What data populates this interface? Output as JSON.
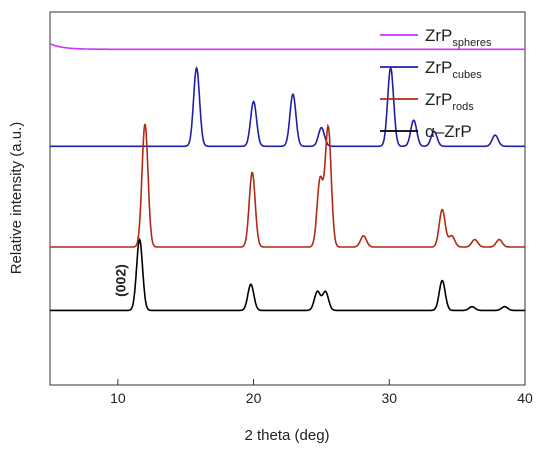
{
  "chart_data": {
    "type": "line",
    "title": "",
    "xlabel": "2 theta (deg)",
    "ylabel": "Relative intensity (a.u.)",
    "xlim": [
      5,
      40
    ],
    "x_ticks": [
      10,
      20,
      30,
      40
    ],
    "grid": false,
    "legend_position": "top-right",
    "annotation": {
      "text": "(002)",
      "x": 11.6
    },
    "series": [
      {
        "name": "ZrP_spheres",
        "label_main": "ZrP",
        "label_sub": "spheres",
        "color": "#cc33ff",
        "baseline": 0.9,
        "start_bump": 0.015,
        "peaks": []
      },
      {
        "name": "ZrP_cubes",
        "label_main": "ZrP",
        "label_sub": "cubes",
        "color": "#1f1fa8",
        "baseline": 0.64,
        "start_bump": 0,
        "peaks": [
          {
            "x": 15.8,
            "h": 0.21
          },
          {
            "x": 20.0,
            "h": 0.12
          },
          {
            "x": 22.9,
            "h": 0.14
          },
          {
            "x": 25.0,
            "h": 0.05
          },
          {
            "x": 30.1,
            "h": 0.21
          },
          {
            "x": 31.8,
            "h": 0.07
          },
          {
            "x": 33.3,
            "h": 0.04
          },
          {
            "x": 37.8,
            "h": 0.03
          }
        ]
      },
      {
        "name": "ZrP_rods",
        "label_main": "ZrP",
        "label_sub": "rods",
        "color": "#b22a16",
        "baseline": 0.37,
        "start_bump": 0,
        "peaks": [
          {
            "x": 12.0,
            "h": 0.33
          },
          {
            "x": 19.9,
            "h": 0.2
          },
          {
            "x": 24.9,
            "h": 0.18
          },
          {
            "x": 25.5,
            "h": 0.32
          },
          {
            "x": 28.1,
            "h": 0.03
          },
          {
            "x": 33.9,
            "h": 0.1
          },
          {
            "x": 34.6,
            "h": 0.03
          },
          {
            "x": 36.3,
            "h": 0.02
          },
          {
            "x": 38.1,
            "h": 0.02
          }
        ]
      },
      {
        "name": "alpha-ZrP",
        "label_main": "α–ZrP",
        "label_sub": "",
        "color": "#000000",
        "baseline": 0.2,
        "start_bump": 0,
        "peaks": [
          {
            "x": 11.6,
            "h": 0.19
          },
          {
            "x": 19.8,
            "h": 0.07
          },
          {
            "x": 24.7,
            "h": 0.05
          },
          {
            "x": 25.3,
            "h": 0.05
          },
          {
            "x": 33.9,
            "h": 0.08
          },
          {
            "x": 36.1,
            "h": 0.01
          },
          {
            "x": 38.5,
            "h": 0.01
          }
        ]
      }
    ]
  }
}
